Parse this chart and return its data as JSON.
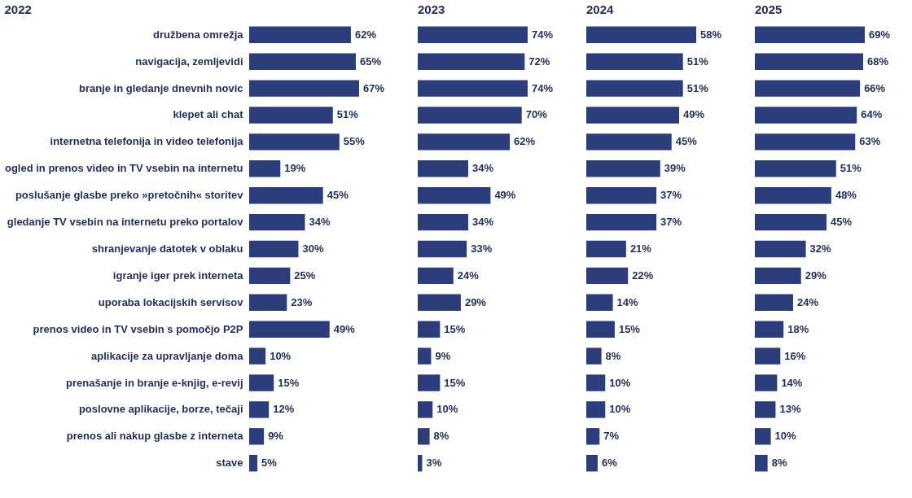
{
  "chart_data": [
    {
      "type": "bar",
      "orientation": "horizontal",
      "title": "2022",
      "color": "#2b3d7a",
      "tick_labels": "y",
      "categories": [
        "družbena omrežja",
        "navigacija, zemljevidi",
        "branje in gledanje dnevnih novic",
        "klepet ali chat",
        "internetna telefonija in video telefonija",
        "ogled in prenos video in TV vsebin na internetu",
        "poslušanje glasbe preko »pretočnih« storitev",
        "gledanje TV vsebin na internetu preko portalov",
        "shranjevanje datotek v oblaku",
        "igranje iger prek interneta",
        "uporaba lokacijskih servisov",
        "prenos video in TV vsebin s pomočjo P2P",
        "aplikacije za upravljanje doma",
        "prenašanje in branje e-knjig, e-revij",
        "poslovne aplikacije, borze, tečaji",
        "prenos ali nakup glasbe z interneta",
        "stave"
      ],
      "values": [
        62,
        65,
        67,
        51,
        55,
        19,
        45,
        34,
        30,
        25,
        23,
        49,
        10,
        15,
        12,
        9,
        5
      ],
      "value_labels": [
        "62%",
        "65%",
        "67%",
        "51%",
        "55%",
        "19%",
        "45%",
        "34%",
        "30%",
        "25%",
        "23%",
        "49%",
        "10%",
        "15%",
        "12%",
        "9%",
        "5%"
      ]
    },
    {
      "type": "bar",
      "orientation": "horizontal",
      "title": "2023",
      "color": "#2b3d7a",
      "tick_labels": false,
      "categories": [
        null,
        null,
        null,
        null,
        null,
        null,
        null,
        null,
        null,
        null,
        null,
        null,
        null,
        null,
        null,
        null,
        null
      ],
      "values": [
        74,
        72,
        74,
        70,
        62,
        34,
        49,
        34,
        33,
        24,
        29,
        15,
        9,
        15,
        10,
        8,
        3
      ],
      "value_labels": [
        "74%",
        "72%",
        "74%",
        "70%",
        "62%",
        "34%",
        "49%",
        "34%",
        "33%",
        "24%",
        "29%",
        "15%",
        "9%",
        "15%",
        "10%",
        "8%",
        "3%"
      ]
    },
    {
      "type": "bar",
      "orientation": "horizontal",
      "title": "2024",
      "color": "#2b3d7a",
      "tick_labels": false,
      "categories": [
        null,
        null,
        null,
        null,
        null,
        null,
        null,
        null,
        null,
        null,
        null,
        null,
        null,
        null,
        null,
        null,
        null
      ],
      "values": [
        58,
        51,
        51,
        49,
        45,
        39,
        37,
        37,
        21,
        22,
        14,
        15,
        8,
        10,
        10,
        7,
        6
      ],
      "value_labels": [
        "58%",
        "51%",
        "51%",
        "49%",
        "45%",
        "39%",
        "37%",
        "37%",
        "21%",
        "22%",
        "14%",
        "15%",
        "8%",
        "10%",
        "10%",
        "7%",
        "6%"
      ]
    },
    {
      "type": "bar",
      "orientation": "horizontal",
      "title": "2025",
      "color": "#2b3d7a",
      "tick_labels": false,
      "categories": [
        null,
        null,
        null,
        null,
        null,
        null,
        null,
        null,
        null,
        null,
        null,
        null,
        null,
        null,
        null,
        null,
        null
      ],
      "values": [
        69,
        68,
        66,
        64,
        63,
        51,
        48,
        45,
        32,
        29,
        24,
        18,
        16,
        14,
        13,
        10,
        8
      ],
      "value_labels": [
        "69%",
        "68%",
        "66%",
        "64%",
        "63%",
        "51%",
        "48%",
        "45%",
        "32%",
        "29%",
        "24%",
        "18%",
        "16%",
        "14%",
        "13%",
        "10%",
        "8%"
      ]
    }
  ]
}
